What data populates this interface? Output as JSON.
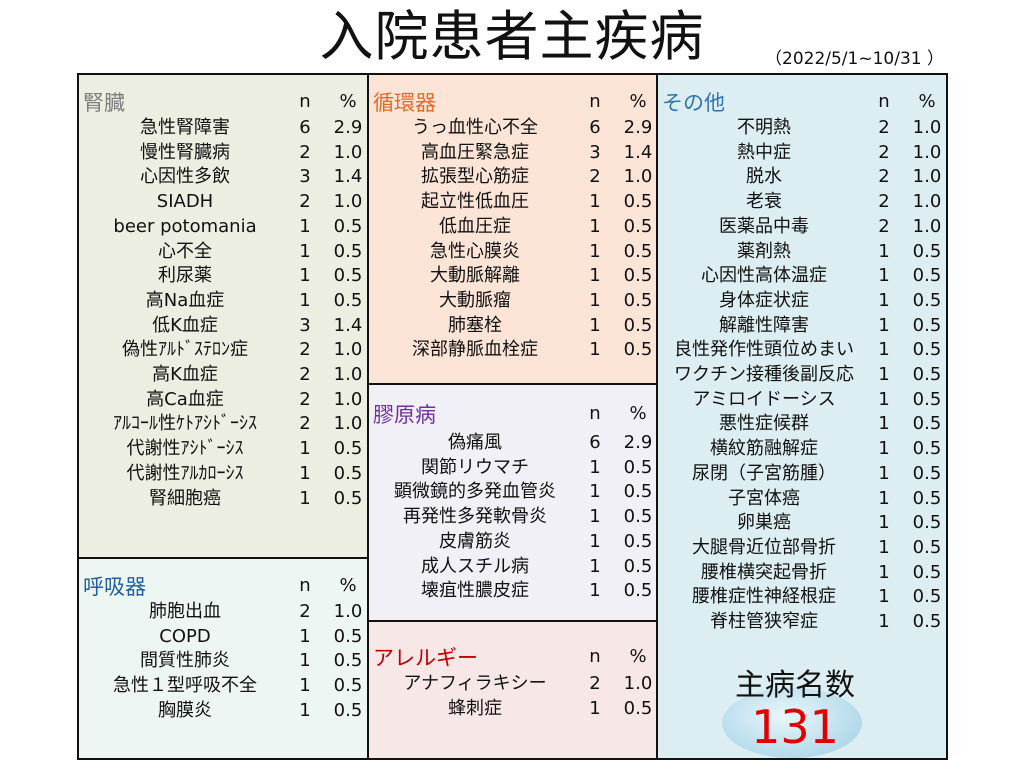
{
  "title": "入院患者主疾病",
  "period": "（2022/5/1~10/31 ）",
  "col_n": "n",
  "col_pct": "%",
  "colors": {
    "kidney_bg": "#ebeee0",
    "kidney_title": "#7f7f7f",
    "resp_bg": "#eef6f3",
    "resp_title": "#1f5f9f",
    "cardio_bg": "#fce4d6",
    "cardio_title": "#e26b2a",
    "collagen_bg": "#f2f0f7",
    "collagen_title": "#7030a0",
    "allergy_bg": "#f8e7e7",
    "allergy_title": "#c00000",
    "other_bg": "#dceef2",
    "other_title": "#2e75b6"
  },
  "panels": [
    {
      "id": "kidney",
      "title": "腎臓",
      "rows": [
        [
          "急性腎障害",
          "6",
          "2.9"
        ],
        [
          "慢性腎臓病",
          "2",
          "1.0"
        ],
        [
          "心因性多飲",
          "3",
          "1.4"
        ],
        [
          "SIADH",
          "2",
          "1.0"
        ],
        [
          "beer potomania",
          "1",
          "0.5"
        ],
        [
          "心不全",
          "1",
          "0.5"
        ],
        [
          "利尿薬",
          "1",
          "0.5"
        ],
        [
          "高Na血症",
          "1",
          "0.5"
        ],
        [
          "低K血症",
          "3",
          "1.4"
        ],
        [
          "偽性ｱﾙﾄﾞｽﾃﾛﾝ症",
          "2",
          "1.0"
        ],
        [
          "高K血症",
          "2",
          "1.0"
        ],
        [
          "高Ca血症",
          "2",
          "1.0"
        ],
        [
          "ｱﾙｺｰﾙ性ｹﾄｱｼﾄﾞｰｼｽ",
          "2",
          "1.0"
        ],
        [
          "代謝性ｱｼﾄﾞｰｼｽ",
          "1",
          "0.5"
        ],
        [
          "代謝性ｱﾙｶﾛｰｼｽ",
          "1",
          "0.5"
        ],
        [
          "腎細胞癌",
          "1",
          "0.5"
        ]
      ]
    },
    {
      "id": "resp",
      "title": "呼吸器",
      "rows": [
        [
          "肺胞出血",
          "2",
          "1.0"
        ],
        [
          "COPD",
          "1",
          "0.5"
        ],
        [
          "間質性肺炎",
          "1",
          "0.5"
        ],
        [
          "急性１型呼吸不全",
          "1",
          "0.5"
        ],
        [
          "胸膜炎",
          "1",
          "0.5"
        ]
      ]
    },
    {
      "id": "cardio",
      "title": "循環器",
      "rows": [
        [
          "うっ血性心不全",
          "6",
          "2.9"
        ],
        [
          "高血圧緊急症",
          "3",
          "1.4"
        ],
        [
          "拡張型心筋症",
          "2",
          "1.0"
        ],
        [
          "起立性低血圧",
          "1",
          "0.5"
        ],
        [
          "低血圧症",
          "1",
          "0.5"
        ],
        [
          "急性心膜炎",
          "1",
          "0.5"
        ],
        [
          "大動脈解離",
          "1",
          "0.5"
        ],
        [
          "大動脈瘤",
          "1",
          "0.5"
        ],
        [
          "肺塞栓",
          "1",
          "0.5"
        ],
        [
          "深部静脈血栓症",
          "1",
          "0.5"
        ]
      ]
    },
    {
      "id": "collagen",
      "title": "膠原病",
      "rows": [
        [
          "偽痛風",
          "6",
          "2.9"
        ],
        [
          "関節リウマチ",
          "1",
          "0.5"
        ],
        [
          "顕微鏡的多発血管炎",
          "1",
          "0.5"
        ],
        [
          "再発性多発軟骨炎",
          "1",
          "0.5"
        ],
        [
          "皮膚筋炎",
          "1",
          "0.5"
        ],
        [
          "成人スチル病",
          "1",
          "0.5"
        ],
        [
          "壊疽性膿皮症",
          "1",
          "0.5"
        ]
      ]
    },
    {
      "id": "allergy",
      "title": "アレルギー",
      "rows": [
        [
          "アナフィラキシー",
          "2",
          "1.0"
        ],
        [
          "蜂刺症",
          "1",
          "0.5"
        ]
      ]
    },
    {
      "id": "other",
      "title": "その他",
      "rows": [
        [
          "不明熱",
          "2",
          "1.0"
        ],
        [
          "熱中症",
          "2",
          "1.0"
        ],
        [
          "脱水",
          "2",
          "1.0"
        ],
        [
          "老衰",
          "2",
          "1.0"
        ],
        [
          "医薬品中毒",
          "2",
          "1.0"
        ],
        [
          "薬剤熱",
          "1",
          "0.5"
        ],
        [
          "心因性高体温症",
          "1",
          "0.5"
        ],
        [
          "身体症状症",
          "1",
          "0.5"
        ],
        [
          "解離性障害",
          "1",
          "0.5"
        ],
        [
          "良性発作性頭位めまい",
          "1",
          "0.5"
        ],
        [
          "ワクチン接種後副反応",
          "1",
          "0.5"
        ],
        [
          "アミロイドーシス",
          "1",
          "0.5"
        ],
        [
          "悪性症候群",
          "1",
          "0.5"
        ],
        [
          "横紋筋融解症",
          "1",
          "0.5"
        ],
        [
          "尿閉（子宮筋腫）",
          "1",
          "0.5"
        ],
        [
          "子宮体癌",
          "1",
          "0.5"
        ],
        [
          "卵巣癌",
          "1",
          "0.5"
        ],
        [
          "大腿骨近位部骨折",
          "1",
          "0.5"
        ],
        [
          "腰椎横突起骨折",
          "1",
          "0.5"
        ],
        [
          "腰椎症性神経根症",
          "1",
          "0.5"
        ],
        [
          "脊柱管狭窄症",
          "1",
          "0.5"
        ]
      ]
    }
  ],
  "total_label": "主病名数",
  "total": "131"
}
